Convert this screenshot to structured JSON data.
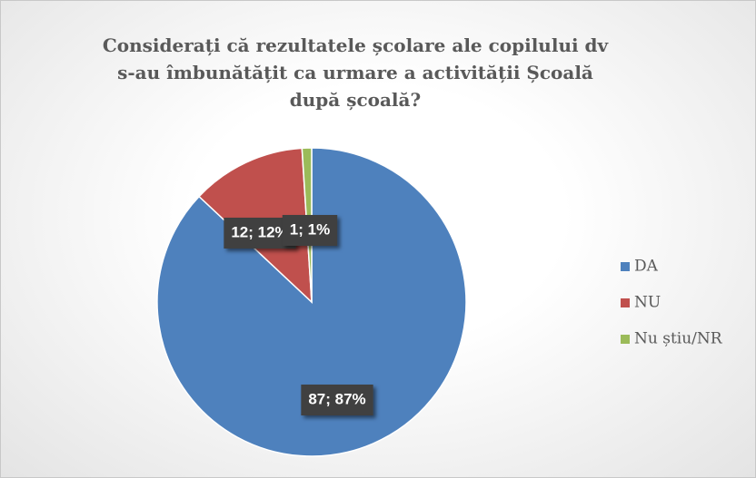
{
  "chart_data": {
    "type": "pie",
    "title": "Considerați că rezultatele școlare ale copilului dv s-au îmbunătățit ca urmare a activității Școală după școală?",
    "categories": [
      "DA",
      "NU",
      "Nu știu/NR"
    ],
    "values": [
      87,
      12,
      1
    ],
    "value_labels": [
      "87; 87%",
      "12; 12%",
      "1; 1%"
    ],
    "colors": [
      "#4e81bd",
      "#c0504d",
      "#9bbb59"
    ],
    "legend": "right"
  }
}
